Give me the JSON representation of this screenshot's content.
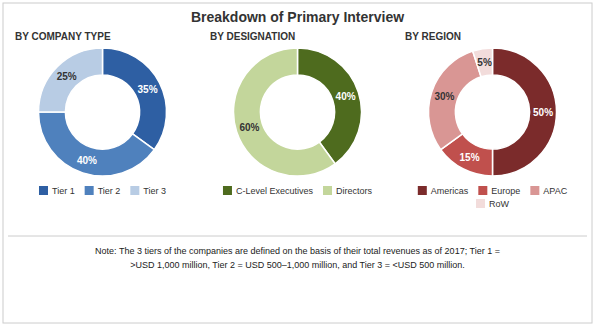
{
  "title": "Breakdown of Primary Interview",
  "annotations": [
    "Note: The 3 tiers of the companies are defined on the basis of their total revenues as of 2017; Tier 1 =",
    ">USD 1,000 million, Tier 2 = USD 500–1,000 million, and Tier 3 = <USD 500 million."
  ],
  "chart_data": [
    {
      "type": "pie",
      "title": "BY COMPANY TYPE",
      "categories": [
        "Tier 1",
        "Tier 2",
        "Tier 3"
      ],
      "values": [
        35,
        40,
        25
      ],
      "value_labels": [
        "35%",
        "40%",
        "25%"
      ],
      "colors": [
        "#2e5fa3",
        "#4f81bd",
        "#b8cce4"
      ],
      "data_labels": true,
      "legend": "bottom"
    },
    {
      "type": "pie",
      "title": "BY DESIGNATION",
      "categories": [
        "C-Level Executives",
        "Directors"
      ],
      "values": [
        40,
        60
      ],
      "value_labels": [
        "40%",
        "60%"
      ],
      "colors": [
        "#4e6b1e",
        "#c3d69b"
      ],
      "data_labels": true,
      "legend": "bottom"
    },
    {
      "type": "pie",
      "title": "BY REGION",
      "categories": [
        "Americas",
        "Europe",
        "APAC",
        "RoW"
      ],
      "values": [
        50,
        15,
        30,
        5
      ],
      "value_labels": [
        "50%",
        "15%",
        "30%",
        "5%"
      ],
      "colors": [
        "#7b2b2b",
        "#c0504d",
        "#d99694",
        "#f2dcdb"
      ],
      "data_labels": true,
      "legend": "bottom"
    }
  ]
}
